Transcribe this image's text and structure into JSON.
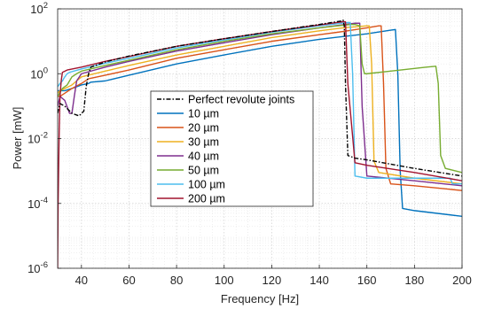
{
  "chart_data": {
    "type": "line",
    "title": "",
    "xlabel": "Frequency [Hz]",
    "ylabel": "Power [mW]",
    "xlim": [
      30,
      200
    ],
    "ylim": [
      1e-06,
      100
    ],
    "y_scale": "log",
    "grid": true,
    "minor_grid": true,
    "legend_position": "center-left",
    "x_ticks": [
      40,
      60,
      80,
      100,
      120,
      140,
      160,
      180,
      200
    ],
    "x_tick_labels": [
      "40",
      "60",
      "80",
      "100",
      "120",
      "140",
      "160",
      "180",
      "200"
    ],
    "y_ticks": [
      1e-06,
      0.0001,
      0.01,
      1,
      100
    ],
    "y_tick_labels": [
      {
        "base": "10",
        "exp": "-6"
      },
      {
        "base": "10",
        "exp": "-4"
      },
      {
        "base": "10",
        "exp": "-2"
      },
      {
        "base": "10",
        "exp": "0"
      },
      {
        "base": "10",
        "exp": "2"
      }
    ],
    "series": [
      {
        "name": "Perfect revolute joints",
        "color": "#000000",
        "dash": "dashdot",
        "x": [
          30,
          30.5,
          31,
          33,
          36,
          39,
          41,
          42,
          43,
          44,
          50,
          60,
          80,
          100,
          120,
          140,
          149,
          150,
          150.5,
          151,
          152,
          155,
          160,
          180,
          200
        ],
        "y": [
          0.06,
          0.09,
          0.12,
          0.1,
          0.06,
          0.05,
          0.07,
          0.4,
          1.0,
          1.6,
          2.3,
          3.5,
          7,
          12,
          20,
          33,
          42,
          45,
          30,
          0.5,
          0.003,
          0.0025,
          0.0022,
          0.0012,
          0.0007
        ]
      },
      {
        "name": "10 µm",
        "color": "#0072BD",
        "dash": "solid",
        "x": [
          30,
          31,
          33,
          36,
          40,
          43,
          44,
          50,
          60,
          80,
          100,
          120,
          140,
          160,
          170,
          172,
          173,
          174,
          175,
          180,
          200
        ],
        "y": [
          0.3,
          0.3,
          0.3,
          0.35,
          0.45,
          0.5,
          0.55,
          0.6,
          0.9,
          2,
          3.8,
          7,
          11.5,
          17,
          22,
          23,
          1.0,
          0.001,
          7e-05,
          6e-05,
          4e-05
        ]
      },
      {
        "name": "20 µm",
        "color": "#D95319",
        "dash": "solid",
        "x": [
          30,
          31,
          33,
          36,
          40,
          43,
          50,
          60,
          80,
          100,
          120,
          140,
          150,
          160,
          165,
          166,
          167,
          168,
          170,
          180,
          200
        ],
        "y": [
          0.2,
          0.2,
          0.25,
          0.35,
          0.5,
          0.7,
          0.9,
          1.3,
          3,
          5.5,
          10,
          16,
          20,
          26,
          30,
          30,
          0.5,
          0.0012,
          0.0004,
          0.00035,
          0.00025
        ]
      },
      {
        "name": "30 µm",
        "color": "#EDB120",
        "dash": "solid",
        "x": [
          30,
          31,
          33,
          36,
          38,
          40,
          50,
          60,
          80,
          100,
          120,
          140,
          150,
          160,
          161,
          162,
          163,
          165,
          180,
          200
        ],
        "y": [
          0.25,
          0.3,
          0.35,
          0.45,
          0.6,
          0.8,
          1.2,
          1.8,
          3.8,
          7,
          13,
          21,
          26,
          30,
          30,
          2.0,
          0.002,
          0.0009,
          0.0006,
          0.0004
        ]
      },
      {
        "name": "40 µm",
        "color": "#7E2F8E",
        "dash": "solid",
        "x": [
          30,
          31,
          33,
          35,
          36,
          37,
          38,
          40,
          50,
          60,
          80,
          100,
          120,
          140,
          155,
          157,
          158,
          160,
          180,
          200
        ],
        "y": [
          0.1,
          0.2,
          0.15,
          0.06,
          0.06,
          0.2,
          0.6,
          1.0,
          1.6,
          2.4,
          5,
          9,
          16,
          26,
          36,
          36,
          0.1,
          0.0007,
          0.0005,
          0.00035
        ]
      },
      {
        "name": "50 µm",
        "color": "#77AC30",
        "dash": "solid",
        "x": [
          30,
          32,
          34,
          35,
          36,
          38,
          40,
          50,
          60,
          80,
          100,
          120,
          140,
          153,
          155,
          157,
          158,
          159,
          160,
          170,
          185,
          189,
          190,
          191,
          193,
          200
        ],
        "y": [
          0.2,
          0.35,
          0.45,
          0.6,
          0.8,
          1.0,
          1.2,
          1.8,
          2.6,
          5.5,
          10,
          17,
          26,
          33,
          33,
          30,
          2.0,
          1.0,
          1.0,
          1.2,
          1.6,
          1.7,
          0.5,
          0.003,
          0.0012,
          0.0009
        ]
      },
      {
        "name": "100 µm",
        "color": "#4DBEEE",
        "dash": "solid",
        "x": [
          30,
          31,
          32,
          33,
          34,
          35,
          40,
          50,
          60,
          80,
          100,
          120,
          140,
          152,
          153,
          154,
          155,
          160,
          180,
          195,
          196,
          200
        ],
        "y": [
          0.4,
          0.5,
          0.6,
          0.8,
          1.0,
          1.1,
          1.4,
          2.1,
          3.0,
          6.2,
          11,
          19,
          30,
          38,
          38,
          1.0,
          0.0007,
          0.0006,
          0.0006,
          0.0006,
          0.0004,
          0.0004
        ]
      },
      {
        "name": "200 µm",
        "color": "#A2142F",
        "dash": "solid",
        "x": [
          30,
          30.2,
          30.4,
          30.6,
          30.8,
          31,
          31.5,
          32,
          34,
          40,
          50,
          60,
          80,
          100,
          120,
          140,
          150,
          151,
          152,
          155,
          160,
          180,
          200
        ],
        "y": [
          1e-06,
          0.0001,
          0.001,
          0.01,
          0.05,
          0.2,
          0.6,
          1.1,
          1.3,
          1.6,
          2.4,
          3.4,
          7,
          12,
          20,
          32,
          40,
          40,
          0.5,
          0.0018,
          0.0015,
          0.0009,
          0.0005
        ]
      }
    ]
  }
}
